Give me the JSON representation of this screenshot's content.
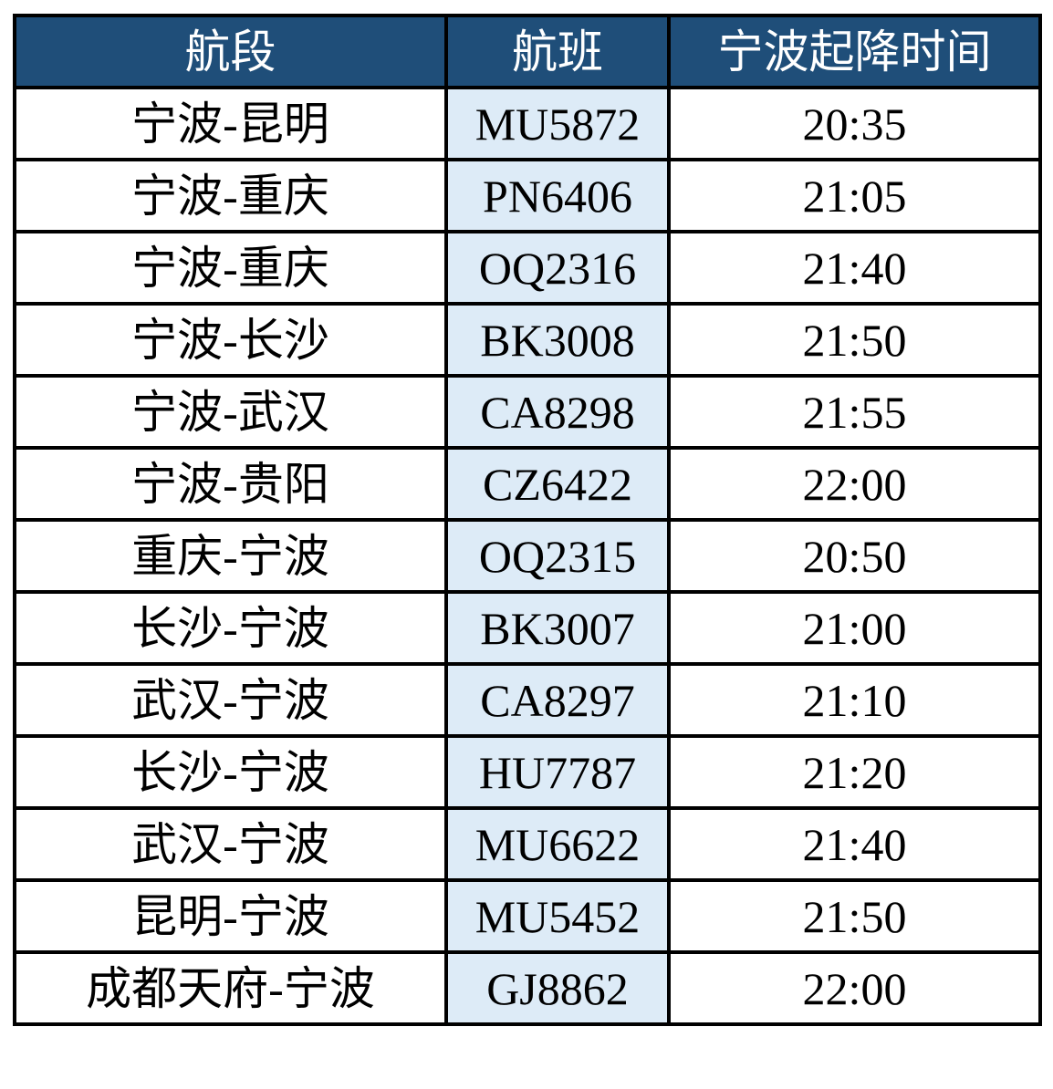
{
  "colors": {
    "header_bg": "#1f4e79",
    "header_text": "#ffffff",
    "flight_col_bg": "#ddebf7",
    "border": "#000000"
  },
  "headers": [
    "航段",
    "航班",
    "宁波起降时间"
  ],
  "rows": [
    [
      "宁波-昆明",
      "MU5872",
      "20:35"
    ],
    [
      "宁波-重庆",
      "PN6406",
      "21:05"
    ],
    [
      "宁波-重庆",
      "OQ2316",
      "21:40"
    ],
    [
      "宁波-长沙",
      "BK3008",
      "21:50"
    ],
    [
      "宁波-武汉",
      "CA8298",
      "21:55"
    ],
    [
      "宁波-贵阳",
      "CZ6422",
      "22:00"
    ],
    [
      "重庆-宁波",
      "OQ2315",
      "20:50"
    ],
    [
      "长沙-宁波",
      "BK3007",
      "21:00"
    ],
    [
      "武汉-宁波",
      "CA8297",
      "21:10"
    ],
    [
      "长沙-宁波",
      "HU7787",
      "21:20"
    ],
    [
      "武汉-宁波",
      "MU6622",
      "21:40"
    ],
    [
      "昆明-宁波",
      "MU5452",
      "21:50"
    ],
    [
      "成都天府-宁波",
      "GJ8862",
      "22:00"
    ]
  ]
}
